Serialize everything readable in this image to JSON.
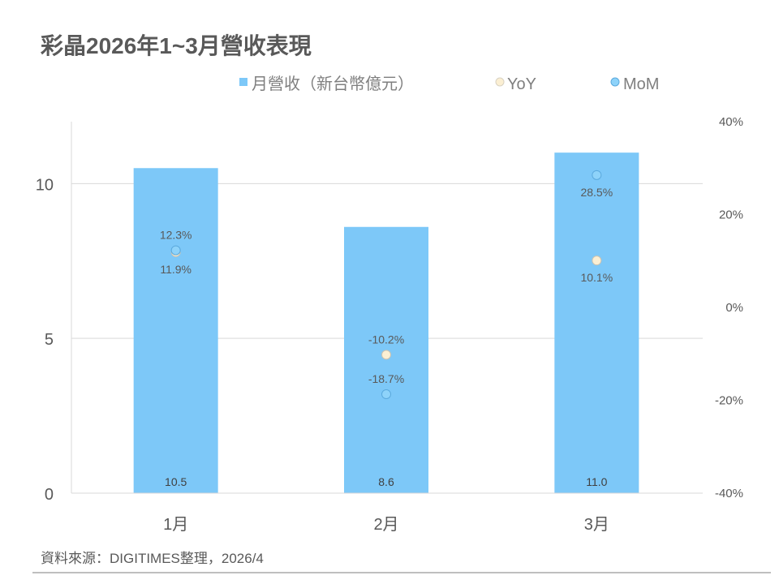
{
  "chart_data": {
    "type": "bar",
    "title": "彩晶2026年1~3月營收表現",
    "categories": [
      "1月",
      "2月",
      "3月"
    ],
    "series": [
      {
        "name": "月營收（新台幣億元）",
        "type": "bar",
        "axis": "left",
        "values": [
          10.5,
          8.6,
          11.0
        ],
        "labels": [
          "10.5",
          "8.6",
          "11.0"
        ],
        "color": "#7DC8F8"
      },
      {
        "name": "YoY",
        "type": "scatter",
        "axis": "right",
        "values": [
          11.9,
          -10.2,
          10.1
        ],
        "labels": [
          "11.9%",
          "-10.2%",
          "10.1%"
        ],
        "color": "#FBEFD3"
      },
      {
        "name": "MoM",
        "type": "scatter",
        "axis": "right",
        "values": [
          12.3,
          -18.7,
          28.5
        ],
        "labels": [
          "12.3%",
          "-18.7%",
          "28.5%"
        ],
        "color": "#8ED3FA"
      }
    ],
    "left_axis": {
      "ylim": [
        0,
        12
      ],
      "ticks": [
        0,
        5,
        10
      ],
      "tick_labels": [
        "0",
        "5",
        "10"
      ]
    },
    "right_axis": {
      "ylim": [
        -40,
        40
      ],
      "ticks": [
        -40,
        -20,
        0,
        20,
        40
      ],
      "tick_labels": [
        "-40%",
        "-20%",
        "0%",
        "20%",
        "40%"
      ]
    },
    "grid": true,
    "legend_placement": "top",
    "source": "資料來源：DIGITIMES整理，2026/4"
  }
}
